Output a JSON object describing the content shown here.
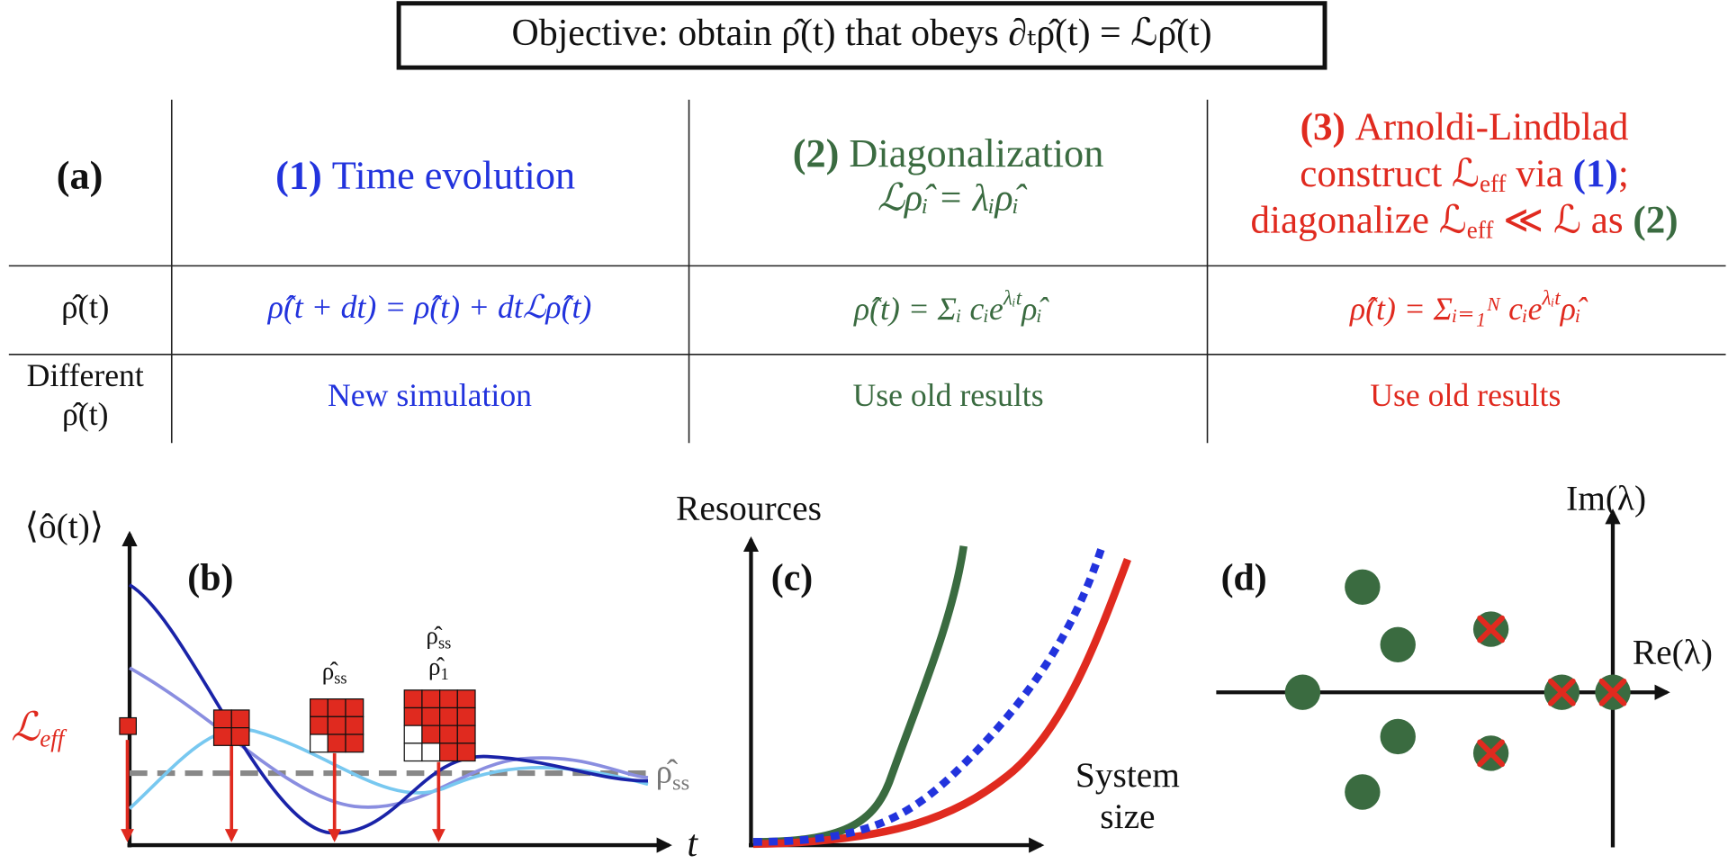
{
  "objective": "Objective: obtain ρ̂(t) that obeys ∂ₜρ̂(t) = ℒρ̂(t)",
  "table": {
    "label": "(a)",
    "headers": [
      {
        "number": "(1)",
        "title": "Time evolution"
      },
      {
        "number": "(2)",
        "title": "Diagonalization",
        "equation": "ℒρ̂ᵢ = λᵢρ̂ᵢ"
      },
      {
        "number": "(3)",
        "title": "Arnoldi-Lindblad",
        "line2": [
          "construct ℒ",
          "eff",
          " via ",
          "(1)",
          ";"
        ],
        "line3": [
          "diagonalize ℒ",
          "eff",
          " ≪ ℒ as ",
          "(2)"
        ]
      }
    ],
    "rows": [
      {
        "label": [
          "ρ̂(t)"
        ],
        "cells": [
          {
            "base": "ρ̂(t + dt) = ρ̂(t) + dtℒρ̂(t)"
          },
          {
            "base": "ρ̂(t) = Σᵢ cᵢe",
            "sup": "λᵢt",
            "tail": "ρ̂ᵢ"
          },
          {
            "base": "ρ̂(t) = Σᵢ₌₁ᴺ cᵢe",
            "sup": "λᵢt",
            "tail": "ρ̂ᵢ"
          }
        ]
      },
      {
        "label": [
          "Different",
          "ρ̂(t)"
        ],
        "cells": [
          {
            "base": "New simulation"
          },
          {
            "base": "Use old results"
          },
          {
            "base": "Use old results"
          }
        ]
      }
    ]
  },
  "panel_b": {
    "label": "(b)",
    "y_axis": "⟨ô(t)⟩",
    "x_axis": "t",
    "operator": {
      "base": "ℒ",
      "sub": "eff"
    },
    "dashed_label": {
      "base": "ρ̂",
      "sub": "ss"
    },
    "matrix_labels": [
      [
        {
          "base": "ρ̂",
          "sub": "ss"
        }
      ],
      [
        {
          "base": "ρ̂",
          "sub": "ss"
        },
        {
          "base": "ρ̂",
          "sub": "1"
        }
      ]
    ]
  },
  "panel_c": {
    "label": "(c)",
    "y_axis": "Resources",
    "x_axis": [
      "System",
      "size"
    ]
  },
  "panel_d": {
    "label": "(d)",
    "y_axis": "Im(λ)",
    "x_axis": "Re(λ)"
  }
}
